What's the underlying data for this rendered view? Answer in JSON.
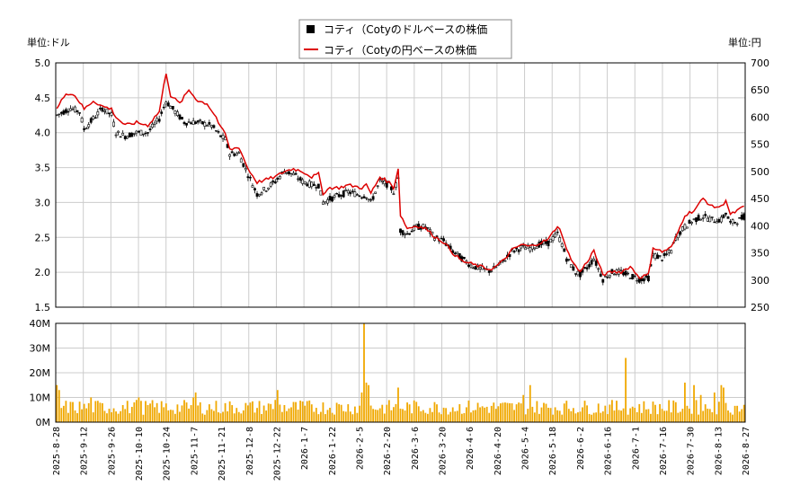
{
  "chart_data": {
    "type": "line",
    "legend": {
      "placement": "top-center",
      "entries": [
        {
          "label": "コティ（Cotyのドルベースの株価",
          "color": "#000000",
          "style": "candlestick"
        },
        {
          "label": "コティ（Cotyの円ベースの株価",
          "color": "#dd0000",
          "style": "line"
        }
      ]
    },
    "left_axis": {
      "unit_label": "単位:ドル",
      "range": [
        1.5,
        5.0
      ],
      "ticks": [
        "1.5",
        "2.0",
        "2.5",
        "3.0",
        "3.5",
        "4.0",
        "4.5",
        "5.0"
      ]
    },
    "right_axis": {
      "unit_label": "単位:円",
      "range": [
        250,
        700
      ],
      "ticks": [
        "250",
        "300",
        "350",
        "400",
        "450",
        "500",
        "550",
        "600",
        "650",
        "700"
      ]
    },
    "volume_axis": {
      "range": [
        0,
        40
      ],
      "ticks": [
        "0M",
        "10M",
        "20M",
        "30M",
        "40M"
      ]
    },
    "x_ticks": [
      "2025-8-28",
      "2025-9-12",
      "2025-9-26",
      "2025-10-10",
      "2025-10-24",
      "2025-11-7",
      "2025-11-21",
      "2025-12-8",
      "2025-12-22",
      "2026-1-7",
      "2026-1-22",
      "2026-2-5",
      "2026-2-20",
      "2026-3-6",
      "2026-3-20",
      "2026-4-6",
      "2026-4-20",
      "2026-5-4",
      "2026-5-18",
      "2026-6-2",
      "2026-6-16",
      "2026-7-1",
      "2026-7-16",
      "2026-7-30",
      "2026-8-13",
      "2026-8-27"
    ],
    "grid": true,
    "usd_keyframes": [
      [
        0,
        4.25
      ],
      [
        6,
        4.35
      ],
      [
        10,
        4.3
      ],
      [
        12,
        4.05
      ],
      [
        16,
        4.2
      ],
      [
        20,
        4.35
      ],
      [
        24,
        4.25
      ],
      [
        26,
        4.0
      ],
      [
        30,
        3.95
      ],
      [
        35,
        4.0
      ],
      [
        40,
        4.0
      ],
      [
        45,
        4.2
      ],
      [
        48,
        4.45
      ],
      [
        52,
        4.3
      ],
      [
        56,
        4.15
      ],
      [
        62,
        4.15
      ],
      [
        68,
        4.1
      ],
      [
        72,
        3.95
      ],
      [
        74,
        3.9
      ],
      [
        76,
        3.7
      ],
      [
        80,
        3.7
      ],
      [
        84,
        3.4
      ],
      [
        88,
        3.12
      ],
      [
        92,
        3.2
      ],
      [
        96,
        3.3
      ],
      [
        100,
        3.45
      ],
      [
        104,
        3.4
      ],
      [
        108,
        3.3
      ],
      [
        112,
        3.25
      ],
      [
        115,
        3.25
      ],
      [
        117,
        3.0
      ],
      [
        120,
        3.05
      ],
      [
        124,
        3.1
      ],
      [
        128,
        3.15
      ],
      [
        134,
        3.1
      ],
      [
        136,
        3.1
      ],
      [
        138,
        3.0
      ],
      [
        142,
        3.3
      ],
      [
        146,
        3.25
      ],
      [
        148,
        3.15
      ],
      [
        150,
        3.35
      ],
      [
        151,
        2.6
      ],
      [
        154,
        2.55
      ],
      [
        158,
        2.65
      ],
      [
        162,
        2.65
      ],
      [
        166,
        2.5
      ],
      [
        170,
        2.45
      ],
      [
        174,
        2.3
      ],
      [
        178,
        2.2
      ],
      [
        182,
        2.1
      ],
      [
        186,
        2.05
      ],
      [
        190,
        2.02
      ],
      [
        192,
        2.05
      ],
      [
        196,
        2.15
      ],
      [
        200,
        2.3
      ],
      [
        204,
        2.35
      ],
      [
        208,
        2.35
      ],
      [
        212,
        2.4
      ],
      [
        216,
        2.42
      ],
      [
        220,
        2.55
      ],
      [
        222,
        2.4
      ],
      [
        224,
        2.2
      ],
      [
        228,
        2.0
      ],
      [
        230,
        1.97
      ],
      [
        234,
        2.1
      ],
      [
        236,
        2.2
      ],
      [
        238,
        2.05
      ],
      [
        240,
        1.9
      ],
      [
        244,
        2.0
      ],
      [
        248,
        2.0
      ],
      [
        252,
        1.95
      ],
      [
        256,
        1.9
      ],
      [
        260,
        1.92
      ],
      [
        262,
        2.25
      ],
      [
        266,
        2.2
      ],
      [
        270,
        2.3
      ],
      [
        272,
        2.5
      ],
      [
        276,
        2.65
      ],
      [
        280,
        2.75
      ],
      [
        284,
        2.8
      ],
      [
        288,
        2.75
      ],
      [
        292,
        2.75
      ],
      [
        294,
        2.85
      ],
      [
        296,
        2.7
      ],
      [
        300,
        2.75
      ],
      [
        302,
        2.8
      ]
    ],
    "jpy_keyframes": [
      [
        0,
        615
      ],
      [
        4,
        645
      ],
      [
        8,
        640
      ],
      [
        12,
        615
      ],
      [
        16,
        630
      ],
      [
        20,
        620
      ],
      [
        24,
        615
      ],
      [
        26,
        600
      ],
      [
        30,
        585
      ],
      [
        35,
        590
      ],
      [
        40,
        585
      ],
      [
        45,
        610
      ],
      [
        48,
        682
      ],
      [
        50,
        640
      ],
      [
        54,
        625
      ],
      [
        58,
        650
      ],
      [
        62,
        630
      ],
      [
        66,
        625
      ],
      [
        70,
        600
      ],
      [
        72,
        580
      ],
      [
        74,
        570
      ],
      [
        76,
        540
      ],
      [
        80,
        545
      ],
      [
        84,
        505
      ],
      [
        88,
        480
      ],
      [
        92,
        485
      ],
      [
        96,
        490
      ],
      [
        100,
        500
      ],
      [
        104,
        505
      ],
      [
        108,
        500
      ],
      [
        112,
        490
      ],
      [
        115,
        495
      ],
      [
        117,
        460
      ],
      [
        120,
        470
      ],
      [
        124,
        470
      ],
      [
        128,
        475
      ],
      [
        134,
        470
      ],
      [
        136,
        475
      ],
      [
        138,
        460
      ],
      [
        142,
        490
      ],
      [
        146,
        480
      ],
      [
        148,
        470
      ],
      [
        150,
        505
      ],
      [
        151,
        420
      ],
      [
        154,
        395
      ],
      [
        158,
        400
      ],
      [
        162,
        395
      ],
      [
        166,
        380
      ],
      [
        170,
        370
      ],
      [
        174,
        350
      ],
      [
        178,
        335
      ],
      [
        182,
        330
      ],
      [
        186,
        325
      ],
      [
        190,
        320
      ],
      [
        192,
        322
      ],
      [
        196,
        335
      ],
      [
        200,
        355
      ],
      [
        204,
        365
      ],
      [
        208,
        362
      ],
      [
        212,
        368
      ],
      [
        216,
        375
      ],
      [
        220,
        400
      ],
      [
        222,
        385
      ],
      [
        224,
        355
      ],
      [
        228,
        325
      ],
      [
        230,
        315
      ],
      [
        234,
        340
      ],
      [
        236,
        355
      ],
      [
        238,
        330
      ],
      [
        240,
        310
      ],
      [
        244,
        315
      ],
      [
        248,
        315
      ],
      [
        252,
        325
      ],
      [
        256,
        305
      ],
      [
        260,
        310
      ],
      [
        262,
        360
      ],
      [
        266,
        352
      ],
      [
        270,
        360
      ],
      [
        272,
        378
      ],
      [
        276,
        420
      ],
      [
        280,
        428
      ],
      [
        284,
        450
      ],
      [
        288,
        435
      ],
      [
        292,
        435
      ],
      [
        294,
        448
      ],
      [
        296,
        420
      ],
      [
        300,
        430
      ],
      [
        302,
        435
      ]
    ],
    "volume_spikes_m": [
      [
        0,
        15
      ],
      [
        1,
        13
      ],
      [
        15,
        10
      ],
      [
        34,
        8
      ],
      [
        35,
        9
      ],
      [
        36,
        10
      ],
      [
        60,
        10
      ],
      [
        61,
        12
      ],
      [
        96,
        9
      ],
      [
        97,
        13
      ],
      [
        134,
        12
      ],
      [
        135,
        40
      ],
      [
        136,
        16
      ],
      [
        137,
        15
      ],
      [
        150,
        14
      ],
      [
        205,
        11
      ],
      [
        208,
        15
      ],
      [
        250,
        26
      ],
      [
        276,
        16
      ],
      [
        280,
        15
      ],
      [
        283,
        11
      ],
      [
        292,
        15
      ],
      [
        293,
        14
      ],
      [
        289,
        12
      ]
    ]
  }
}
